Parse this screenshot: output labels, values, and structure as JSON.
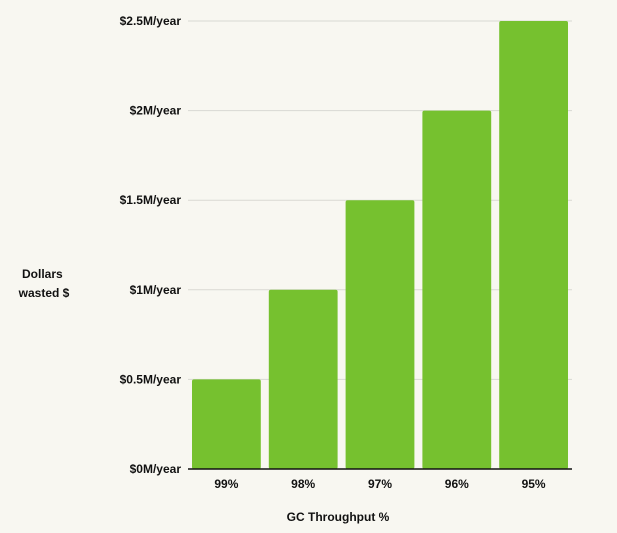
{
  "chart_data": {
    "type": "bar",
    "title": "",
    "xlabel": "GC Throughput %",
    "ylabel_lines": [
      "Dollars",
      "wasted $"
    ],
    "categories": [
      "99%",
      "98%",
      "97%",
      "96%",
      "95%"
    ],
    "values": [
      0.5,
      1.0,
      1.5,
      2.0,
      2.5
    ],
    "ylim": [
      0,
      2.5
    ],
    "yticks": [
      0,
      0.5,
      1.0,
      1.5,
      2.0,
      2.5
    ],
    "ytick_labels": [
      "$0M/year",
      "$0.5M/year",
      "$1M/year",
      "$1.5M/year",
      "$2M/year",
      "$2.5M/year"
    ],
    "grid": true,
    "legend": "none",
    "bar_color": "#76c12f",
    "grid_color": "#d9d9d3",
    "axis_color": "#111111",
    "background": "#f8f7f1"
  }
}
